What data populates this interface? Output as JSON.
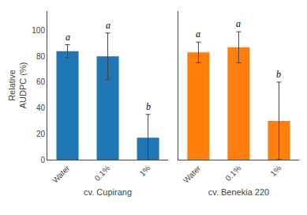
{
  "chart_data": [
    {
      "type": "bar",
      "categories": [
        "Water",
        "0.1%",
        "1%"
      ],
      "values": [
        84,
        80,
        17
      ],
      "errors": [
        5,
        18,
        18
      ],
      "annotations": [
        {
          "x": "Water",
          "text": "a"
        },
        {
          "x": "0.1%",
          "text": "a"
        },
        {
          "x": "1%",
          "text": "b"
        }
      ],
      "xlabel": "cv. Cupirang",
      "ylabel": "Relative\nAUDPC (%)",
      "ylim": [
        0,
        115
      ],
      "yticks": [
        0,
        20,
        40,
        60,
        80,
        100
      ],
      "grid": false
    },
    {
      "type": "bar",
      "categories": [
        "Water",
        "0.1%",
        "1%"
      ],
      "values": [
        83,
        87,
        30
      ],
      "errors": [
        8,
        12,
        30
      ],
      "annotations": [
        {
          "x": "Water",
          "text": "a"
        },
        {
          "x": "0.1%",
          "text": "a"
        },
        {
          "x": "1%",
          "text": "b"
        }
      ],
      "xlabel": "cv. Benekia 220",
      "ylim": [
        0,
        115
      ],
      "yticks": [
        0,
        20,
        40,
        60,
        80,
        100
      ],
      "grid": false,
      "tick_labels": "x"
    }
  ]
}
